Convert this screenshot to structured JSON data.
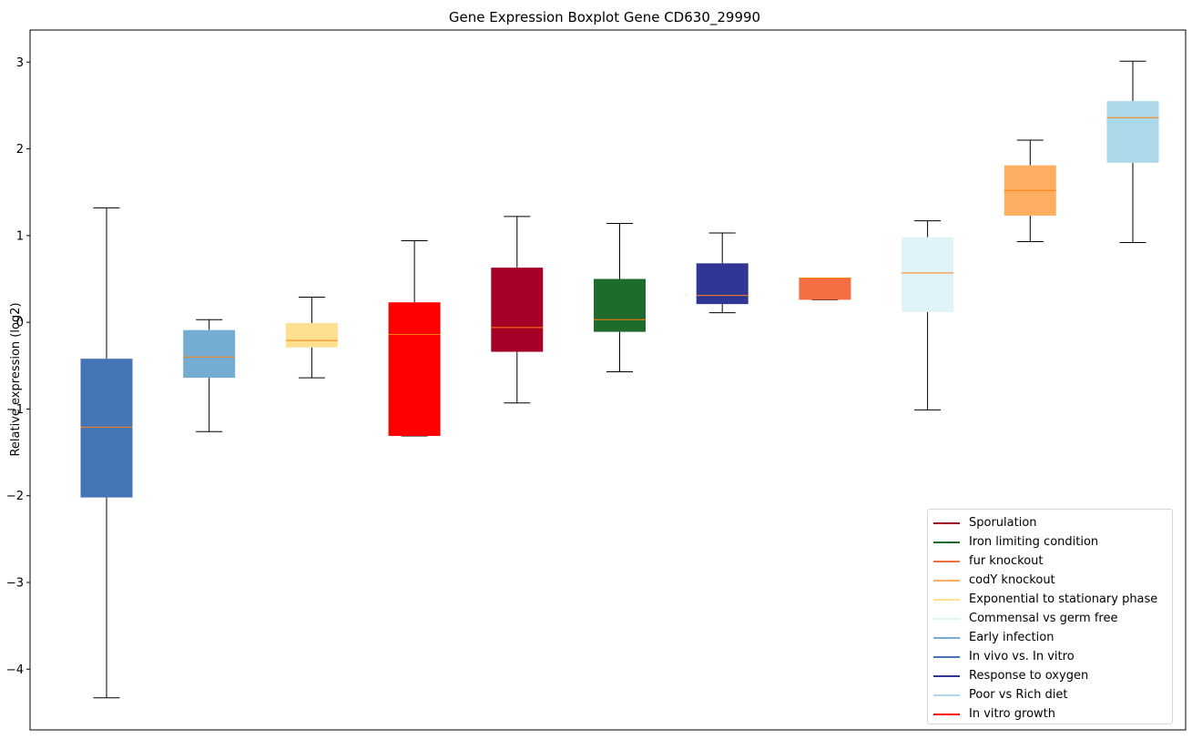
{
  "chart_data": {
    "type": "boxplot",
    "title": "Gene Expression Boxplot Gene CD630_29990",
    "xlabel": "",
    "ylabel": "Relative expression (log2)",
    "ylim": [
      -4.7,
      3.37
    ],
    "yticks": [
      -4,
      -3,
      -2,
      -1,
      0,
      1,
      2,
      3
    ],
    "ytick_labels": [
      "−4",
      "−3",
      "−2",
      "−1",
      "0",
      "1",
      "2",
      "3"
    ],
    "grid": false,
    "legend_position": "lower right",
    "median_color": "#ff7f0e",
    "whisker_color": "#000000",
    "boxes": [
      {
        "group": "In vivo vs. In vitro",
        "color": "#4575b4",
        "whisker_low": -4.33,
        "q1": -2.02,
        "median": -1.21,
        "q3": -0.42,
        "whisker_high": 1.32
      },
      {
        "group": "Early infection",
        "color": "#74add1",
        "whisker_low": -1.26,
        "q1": -0.64,
        "median": -0.4,
        "q3": -0.09,
        "whisker_high": 0.03
      },
      {
        "group": "Exponential to stationary phase",
        "color": "#fee090",
        "whisker_low": -0.64,
        "q1": -0.29,
        "median": -0.21,
        "q3": -0.01,
        "whisker_high": 0.29
      },
      {
        "group": "In vitro growth",
        "color": "#ff0000",
        "whisker_low": -1.31,
        "q1": -1.31,
        "median": -0.14,
        "q3": 0.23,
        "whisker_high": 0.94
      },
      {
        "group": "Sporulation",
        "color": "#a50026",
        "whisker_low": -0.93,
        "q1": -0.34,
        "median": -0.06,
        "q3": 0.63,
        "whisker_high": 1.22
      },
      {
        "group": "Iron limiting condition",
        "color": "#1f6b2c",
        "whisker_low": -0.57,
        "q1": -0.11,
        "median": 0.03,
        "q3": 0.5,
        "whisker_high": 1.14
      },
      {
        "group": "Response to oxygen",
        "color": "#313695",
        "whisker_low": 0.11,
        "q1": 0.21,
        "median": 0.31,
        "q3": 0.68,
        "whisker_high": 1.03
      },
      {
        "group": "fur knockout",
        "color": "#f46d43",
        "whisker_low": 0.26,
        "q1": 0.26,
        "median": 0.51,
        "q3": 0.51,
        "whisker_high": 0.51
      },
      {
        "group": "Commensal vs germ free",
        "color": "#e0f3f8",
        "whisker_low": -1.01,
        "q1": 0.12,
        "median": 0.57,
        "q3": 0.98,
        "whisker_high": 1.17
      },
      {
        "group": "codY knockout",
        "color": "#fdae61",
        "whisker_low": 0.93,
        "q1": 1.23,
        "median": 1.52,
        "q3": 1.81,
        "whisker_high": 2.1
      },
      {
        "group": "Poor vs Rich diet",
        "color": "#abd9e9",
        "whisker_low": 0.92,
        "q1": 1.84,
        "median": 2.36,
        "q3": 2.55,
        "whisker_high": 3.01
      }
    ],
    "legend": [
      {
        "label": "Sporulation",
        "color": "#a50026"
      },
      {
        "label": "Iron limiting condition",
        "color": "#1f6b2c"
      },
      {
        "label": "fur knockout",
        "color": "#f46d43"
      },
      {
        "label": "codY knockout",
        "color": "#fdae61"
      },
      {
        "label": "Exponential to stationary phase",
        "color": "#fee090"
      },
      {
        "label": "Commensal vs germ free",
        "color": "#e0f3f8"
      },
      {
        "label": "Early infection",
        "color": "#74add1"
      },
      {
        "label": "In vivo vs. In vitro",
        "color": "#4575b4"
      },
      {
        "label": "Response to oxygen",
        "color": "#313695"
      },
      {
        "label": "Poor vs Rich diet",
        "color": "#abd9e9"
      },
      {
        "label": "In vitro growth",
        "color": "#ff0000"
      }
    ]
  }
}
